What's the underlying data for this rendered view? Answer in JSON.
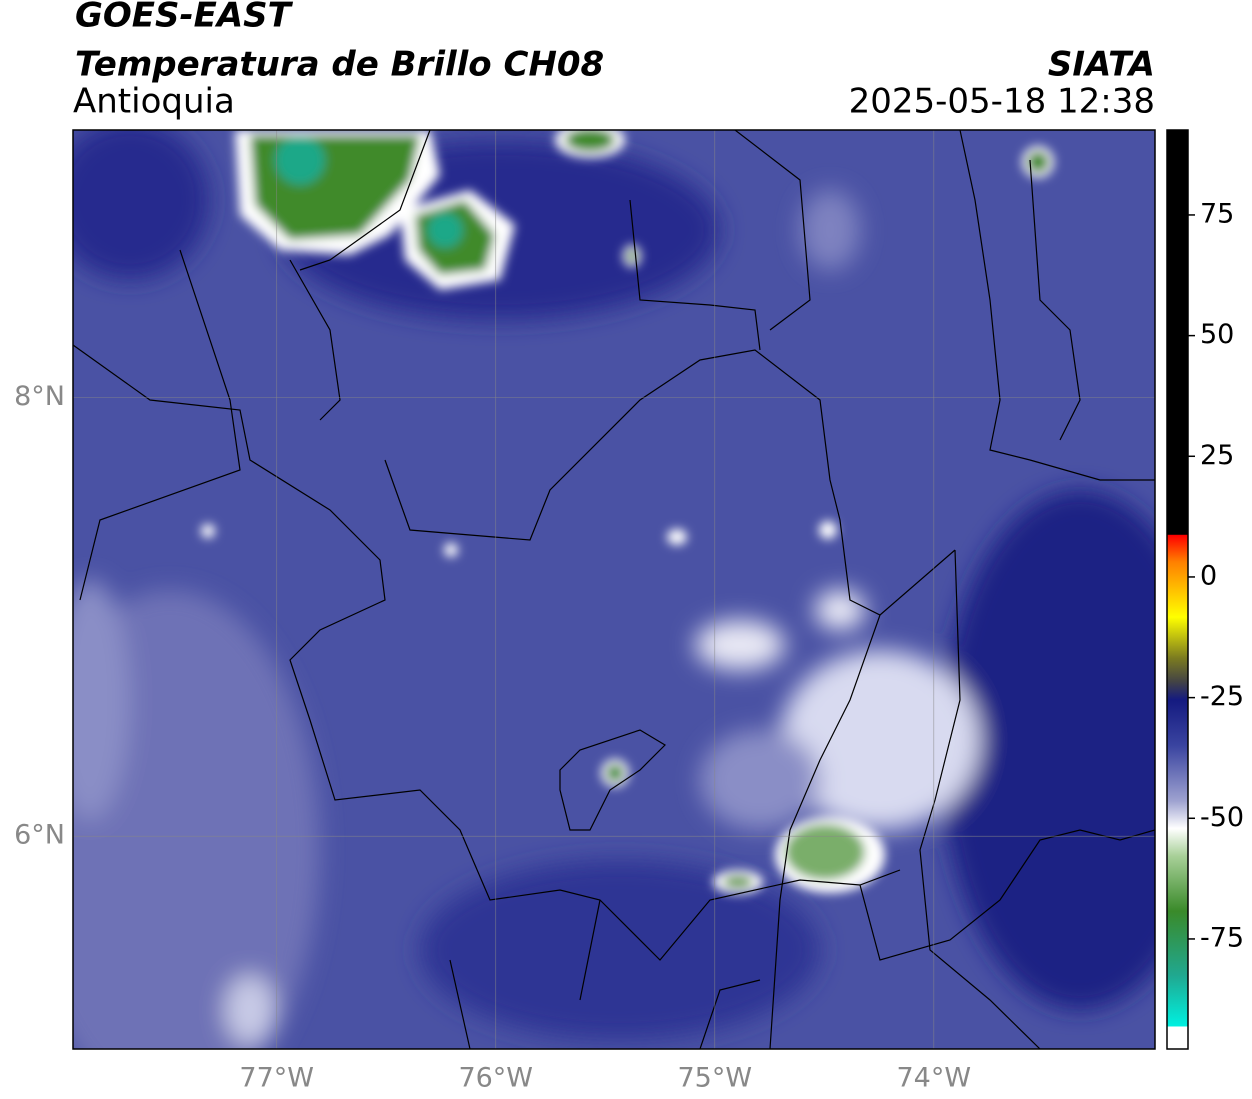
{
  "header": {
    "title": "GOES-EAST",
    "subtitle": "Temperatura de Brillo CH08",
    "region": "Antioquia",
    "source": "SIATA",
    "datetime": "2025-05-18 12:38"
  },
  "map": {
    "xlim": [
      -77.93,
      -72.99
    ],
    "ylim": [
      5.03,
      9.22
    ],
    "xticks": [
      {
        "value": -77,
        "label": "77°W"
      },
      {
        "value": -76,
        "label": "76°W"
      },
      {
        "value": -75,
        "label": "75°W"
      },
      {
        "value": -74,
        "label": "74°W"
      }
    ],
    "yticks": [
      {
        "value": 8,
        "label": "8°N"
      },
      {
        "value": 6,
        "label": "6°N"
      }
    ],
    "grid": true
  },
  "colorbar": {
    "lim": [
      -97.8,
      92.6
    ],
    "ticks": [
      75,
      50,
      25,
      0,
      -25,
      -50,
      -75
    ]
  }
}
